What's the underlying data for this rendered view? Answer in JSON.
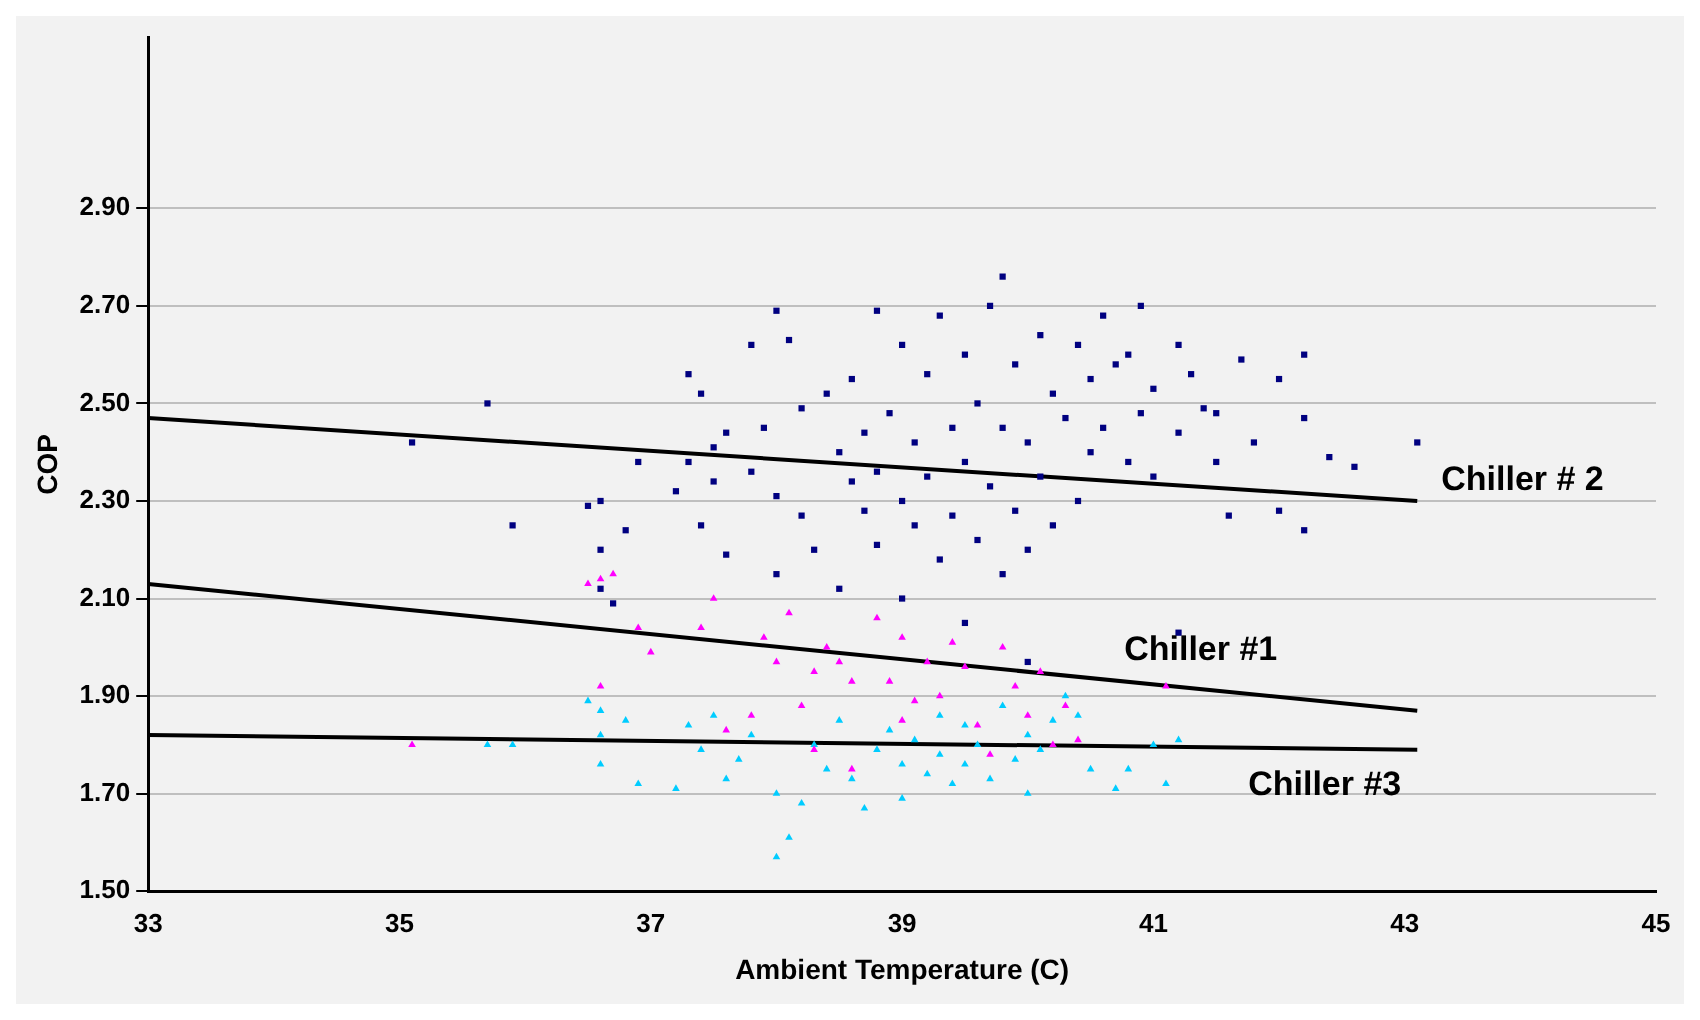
{
  "chart_data": {
    "type": "scatter",
    "xlabel": "Ambient Temperature (C)",
    "ylabel": "COP",
    "xlim": [
      33,
      45
    ],
    "xticks": [
      33,
      35,
      37,
      39,
      41,
      43,
      45
    ],
    "ylim": [
      1.5,
      3.25
    ],
    "yticks": [
      {
        "value": 1.5,
        "label": "1.50"
      },
      {
        "value": 1.7,
        "label": "1.70"
      },
      {
        "value": 1.9,
        "label": "1.90"
      },
      {
        "value": 2.1,
        "label": "2.10"
      },
      {
        "value": 2.3,
        "label": "2.30"
      },
      {
        "value": 2.5,
        "label": "2.50"
      },
      {
        "value": 2.7,
        "label": "2.70"
      },
      {
        "value": 2.9,
        "label": "2.90"
      }
    ],
    "grid": "y",
    "legend": false,
    "series": [
      {
        "marker": "square",
        "color": "#000080",
        "x": [
          35.1,
          35.7,
          35.9,
          36.5,
          36.6,
          36.6,
          36.6,
          36.7,
          36.8,
          36.9,
          37.2,
          37.3,
          37.3,
          37.4,
          37.4,
          37.5,
          37.5,
          37.6,
          37.6,
          37.8,
          37.8,
          37.9,
          38.0,
          38.0,
          38.0,
          38.1,
          38.2,
          38.2,
          38.3,
          38.4,
          38.5,
          38.5,
          38.6,
          38.6,
          38.7,
          38.7,
          38.8,
          38.8,
          38.8,
          38.9,
          39.0,
          39.0,
          39.0,
          39.1,
          39.1,
          39.2,
          39.2,
          39.3,
          39.3,
          39.4,
          39.4,
          39.5,
          39.5,
          39.5,
          39.6,
          39.6,
          39.7,
          39.7,
          39.8,
          39.8,
          39.8,
          39.9,
          39.9,
          40.0,
          40.0,
          40.0,
          40.1,
          40.1,
          40.2,
          40.2,
          40.3,
          40.4,
          40.4,
          40.5,
          40.5,
          40.6,
          40.6,
          40.7,
          40.8,
          40.8,
          40.9,
          40.9,
          41.0,
          41.0,
          41.2,
          41.2,
          41.2,
          41.3,
          41.4,
          41.5,
          41.5,
          41.6,
          41.7,
          41.8,
          42.0,
          42.0,
          42.2,
          42.2,
          42.2,
          42.4,
          42.6,
          43.1
        ],
        "values": [
          2.42,
          2.5,
          2.25,
          2.29,
          2.3,
          2.2,
          2.12,
          2.09,
          2.24,
          2.38,
          2.32,
          2.56,
          2.38,
          2.52,
          2.25,
          2.41,
          2.34,
          2.44,
          2.19,
          2.36,
          2.62,
          2.45,
          2.69,
          2.31,
          2.15,
          2.63,
          2.49,
          2.27,
          2.2,
          2.52,
          2.4,
          2.12,
          2.34,
          2.55,
          2.28,
          2.44,
          2.69,
          2.36,
          2.21,
          2.48,
          2.62,
          2.3,
          2.1,
          2.42,
          2.25,
          2.56,
          2.35,
          2.68,
          2.18,
          2.45,
          2.27,
          2.6,
          2.38,
          2.05,
          2.5,
          2.22,
          2.7,
          2.33,
          2.76,
          2.45,
          2.15,
          2.58,
          2.28,
          2.42,
          2.2,
          1.97,
          2.64,
          2.35,
          2.52,
          2.25,
          2.47,
          2.62,
          2.3,
          2.55,
          2.4,
          2.68,
          2.45,
          2.58,
          2.38,
          2.6,
          2.48,
          2.7,
          2.53,
          2.35,
          2.62,
          2.44,
          2.03,
          2.56,
          2.49,
          2.48,
          2.38,
          2.27,
          2.59,
          2.42,
          2.55,
          2.28,
          2.6,
          2.47,
          2.24,
          2.39,
          2.37,
          2.42
        ]
      },
      {
        "marker": "triangle",
        "color": "#ff00ff",
        "x": [
          35.1,
          36.5,
          36.6,
          36.6,
          36.7,
          36.9,
          37.0,
          37.4,
          37.5,
          37.6,
          37.8,
          37.9,
          38.0,
          38.1,
          38.3,
          38.3,
          38.5,
          38.6,
          38.6,
          38.8,
          38.9,
          39.0,
          39.0,
          39.1,
          39.3,
          39.4,
          39.5,
          39.6,
          39.7,
          39.8,
          39.9,
          40.0,
          40.1,
          40.2,
          40.3,
          40.4,
          41.1,
          38.2,
          39.2,
          38.4
        ],
        "values": [
          1.8,
          2.13,
          2.14,
          1.92,
          2.15,
          2.04,
          1.99,
          2.04,
          2.1,
          1.83,
          1.86,
          2.02,
          1.97,
          2.07,
          1.95,
          1.79,
          1.97,
          1.93,
          1.75,
          2.06,
          1.93,
          1.85,
          2.02,
          1.89,
          1.9,
          2.01,
          1.96,
          1.84,
          1.78,
          2.0,
          1.92,
          1.86,
          1.95,
          1.8,
          1.88,
          1.81,
          1.92,
          1.88,
          1.97,
          2.0
        ]
      },
      {
        "marker": "triangle",
        "color": "#00ccff",
        "x": [
          35.7,
          35.9,
          36.5,
          36.6,
          36.6,
          36.6,
          36.8,
          36.9,
          37.2,
          37.3,
          37.4,
          37.5,
          37.6,
          37.7,
          37.8,
          38.0,
          38.0,
          38.1,
          38.2,
          38.3,
          38.4,
          38.5,
          38.6,
          38.7,
          38.8,
          38.9,
          39.0,
          39.0,
          39.1,
          39.2,
          39.3,
          39.3,
          39.4,
          39.5,
          39.5,
          39.6,
          39.7,
          39.8,
          39.9,
          40.0,
          40.0,
          40.1,
          40.2,
          40.3,
          40.4,
          40.5,
          40.7,
          40.8,
          41.0,
          41.2,
          41.1
        ],
        "values": [
          1.8,
          1.8,
          1.89,
          1.87,
          1.82,
          1.76,
          1.85,
          1.72,
          1.71,
          1.84,
          1.79,
          1.86,
          1.73,
          1.77,
          1.82,
          1.7,
          1.57,
          1.61,
          1.68,
          1.8,
          1.75,
          1.85,
          1.73,
          1.67,
          1.79,
          1.83,
          1.76,
          1.69,
          1.81,
          1.74,
          1.86,
          1.78,
          1.72,
          1.84,
          1.76,
          1.8,
          1.73,
          1.88,
          1.77,
          1.82,
          1.7,
          1.79,
          1.85,
          1.9,
          1.86,
          1.75,
          1.71,
          1.75,
          1.8,
          1.81,
          1.72
        ]
      },
      {
        "type": "line",
        "name": "Chiller # 2",
        "marker": "none",
        "line_style": "solid",
        "color": "#000000",
        "x": [
          33,
          43.1
        ],
        "values": [
          2.47,
          2.3
        ]
      },
      {
        "type": "line",
        "name": "Chiller #1",
        "marker": "none",
        "line_style": "solid",
        "color": "#000000",
        "x": [
          33,
          43.1
        ],
        "values": [
          2.13,
          1.87
        ]
      },
      {
        "type": "line",
        "name": "Chiller #3",
        "marker": "none",
        "line_style": "solid",
        "color": "#000000",
        "x": [
          33,
          43.1
        ],
        "values": [
          1.82,
          1.79
        ]
      }
    ]
  }
}
